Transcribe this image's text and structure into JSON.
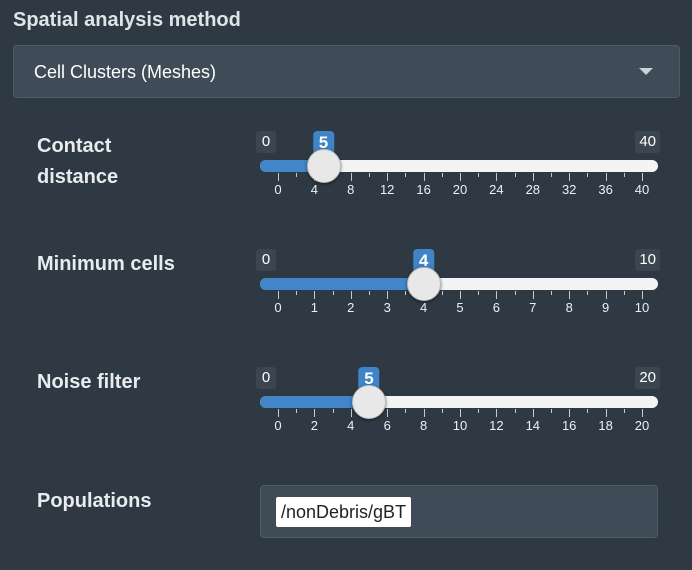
{
  "section_title": "Spatial analysis method",
  "method_select": {
    "value": "Cell Clusters (Meshes)"
  },
  "sliders": [
    {
      "id": "contact",
      "label_line1": "Contact",
      "label_line2": "distance",
      "min": 0,
      "max": 40,
      "value": 5,
      "ticks": [
        0,
        4,
        8,
        12,
        16,
        20,
        24,
        28,
        32,
        36,
        40
      ]
    },
    {
      "id": "mincells",
      "label_line1": "Minimum cells",
      "label_line2": "",
      "min": 0,
      "max": 10,
      "value": 4,
      "ticks": [
        0,
        1,
        2,
        3,
        4,
        5,
        6,
        7,
        8,
        9,
        10
      ]
    },
    {
      "id": "noise",
      "label_line1": "Noise filter",
      "label_line2": "",
      "min": 0,
      "max": 20,
      "value": 5,
      "ticks": [
        0,
        2,
        4,
        6,
        8,
        10,
        12,
        14,
        16,
        18,
        20
      ]
    }
  ],
  "populations": {
    "label": "Populations",
    "value": "/nonDebris/gBT"
  },
  "colors": {
    "accent": "#4285c8",
    "background": "#2e3944",
    "panel": "#3f4b57"
  }
}
